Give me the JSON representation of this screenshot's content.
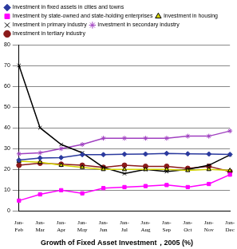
{
  "chart_data": {
    "type": "line",
    "title": "Growth of Fixed Asset Investment，2005 (%)",
    "categories": [
      "Jan-Feb",
      "Jan-Mar",
      "Jan-Apr",
      "Jan-May",
      "Jan-Jun",
      "Jan-Jul",
      "Jan-Aug",
      "Jan-Sep",
      "Jan-Oct",
      "Jan-Nov",
      "Jan-Dec"
    ],
    "series": [
      {
        "name": "Investment in fixed assets in cities and towns",
        "color": "#2b3a9e",
        "marker": "diamond",
        "values": [
          24.5,
          25.5,
          25.7,
          27.1,
          27.1,
          27.3,
          27.4,
          27.7,
          27.5,
          27.4,
          27.2
        ]
      },
      {
        "name": "Investment by state-owned and state-holding enterprises",
        "color": "#ff00ff",
        "marker": "square",
        "values": [
          5,
          8,
          10,
          8.5,
          11,
          11.5,
          12,
          12.5,
          11.5,
          13,
          17.5
        ]
      },
      {
        "name": "Investment in housing",
        "color": "#d4d400",
        "marker": "triangle",
        "values": [
          24,
          23.5,
          22,
          21,
          20,
          20,
          20,
          20,
          19.5,
          20,
          19.5
        ]
      },
      {
        "name": "Investment in primary industry",
        "color": "#000000",
        "marker": "x",
        "values": [
          70,
          40,
          32,
          28,
          21,
          18,
          20,
          19,
          20,
          22,
          27
        ]
      },
      {
        "name": "Investment in secondary industry",
        "color": "#a040c0",
        "marker": "star",
        "values": [
          27.5,
          28,
          30,
          32,
          35,
          35,
          35,
          35,
          36,
          36,
          38.5
        ]
      },
      {
        "name": "Investment in tertiary industry",
        "color": "#8b1a1a",
        "marker": "circle",
        "values": [
          22,
          23,
          22.5,
          22,
          21,
          22,
          21.5,
          21.5,
          20.5,
          21.5,
          19
        ]
      }
    ],
    "ylim": [
      0,
      80
    ],
    "yticks": [
      0,
      10,
      20,
      30,
      40,
      50,
      60,
      70,
      80
    ],
    "grid": true,
    "legend": "top"
  }
}
